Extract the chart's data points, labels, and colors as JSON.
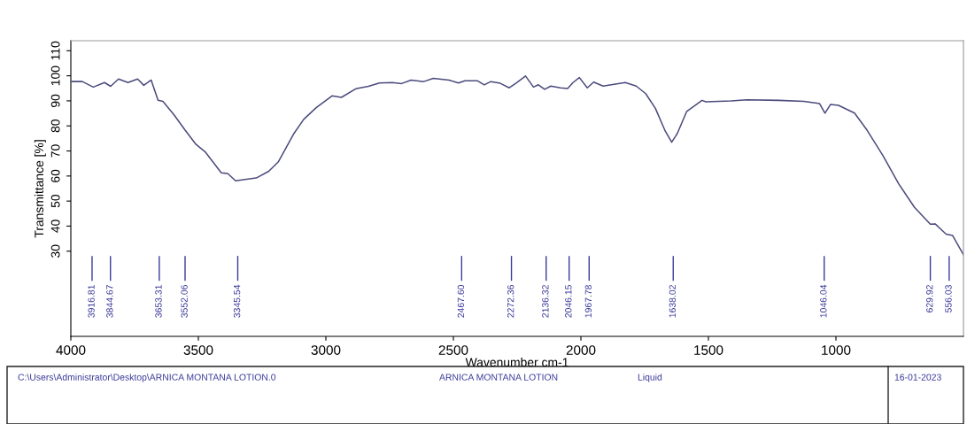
{
  "chart_data": {
    "type": "line",
    "xlabel": "Wavenumber cm-1",
    "ylabel": "Transmittance [%]",
    "xlim": [
      4000,
      500
    ],
    "xticks": [
      4000,
      3500,
      3000,
      2500,
      2000,
      1500,
      1000
    ],
    "ylim": [
      -4,
      114
    ],
    "yticks": [
      30,
      40,
      50,
      60,
      70,
      80,
      90,
      100,
      110
    ],
    "grid": false,
    "legend": false,
    "marker": "none",
    "line_style": "solid",
    "series": [
      {
        "color": "#4b4b7d",
        "x": [
          3995,
          3955,
          3912,
          3868,
          3844,
          3813,
          3776,
          3738,
          3714,
          3685,
          3658,
          3639,
          3596,
          3552,
          3509,
          3472,
          3410,
          3385,
          3354,
          3317,
          3273,
          3224,
          3186,
          3125,
          3087,
          3038,
          2976,
          2939,
          2883,
          2833,
          2790,
          2740,
          2703,
          2666,
          2616,
          2579,
          2517,
          2480,
          2455,
          2405,
          2379,
          2353,
          2316,
          2281,
          2254,
          2217,
          2186,
          2167,
          2142,
          2118,
          2080,
          2052,
          2031,
          2006,
          1975,
          1950,
          1913,
          1870,
          1826,
          1783,
          1746,
          1708,
          1671,
          1644,
          1622,
          1585,
          1525,
          1510,
          1411,
          1349,
          1225,
          1126,
          1064,
          1043,
          1021,
          990,
          927,
          878,
          816,
          754,
          692,
          630,
          611,
          568,
          543,
          500
        ],
        "values": [
          97.7,
          97.7,
          95.5,
          97.3,
          95.8,
          98.7,
          97.3,
          98.7,
          96.2,
          98.3,
          90.2,
          89.8,
          84.5,
          78.3,
          72.6,
          69.5,
          61.3,
          61.0,
          58.1,
          58.6,
          59.2,
          61.9,
          65.7,
          77.0,
          82.6,
          87.3,
          92.0,
          91.4,
          94.8,
          95.8,
          97.1,
          97.3,
          96.9,
          98.3,
          97.7,
          99.0,
          98.3,
          97.1,
          98.0,
          98.0,
          96.4,
          97.7,
          97.0,
          95.2,
          97.1,
          99.9,
          95.5,
          96.4,
          94.6,
          95.9,
          95.2,
          94.9,
          97.3,
          99.3,
          95.2,
          97.5,
          95.9,
          96.6,
          97.3,
          95.9,
          92.9,
          87.0,
          78.3,
          73.5,
          77.0,
          85.8,
          90.2,
          89.6,
          90.0,
          90.4,
          90.2,
          89.8,
          88.9,
          85.1,
          88.6,
          88.2,
          85.1,
          78.3,
          68.2,
          56.9,
          47.5,
          40.8,
          40.9,
          36.8,
          36.3,
          28.6
        ]
      }
    ],
    "ref_lines": [
      {
        "axis": "x",
        "value": 3916.81,
        "label": "3916.81",
        "color": "#3a3a9a"
      },
      {
        "axis": "x",
        "value": 3844.67,
        "label": "3844.67",
        "color": "#3a3a9a"
      },
      {
        "axis": "x",
        "value": 3653.31,
        "label": "3653.31",
        "color": "#3a3a9a"
      },
      {
        "axis": "x",
        "value": 3552.06,
        "label": "3552.06",
        "color": "#3a3a9a"
      },
      {
        "axis": "x",
        "value": 3345.54,
        "label": "3345.54",
        "color": "#3a3a9a"
      },
      {
        "axis": "x",
        "value": 2467.6,
        "label": "2467.60",
        "color": "#3a3a9a"
      },
      {
        "axis": "x",
        "value": 2272.36,
        "label": "2272.36",
        "color": "#3a3a9a"
      },
      {
        "axis": "x",
        "value": 2136.32,
        "label": "2136.32",
        "color": "#3a3a9a"
      },
      {
        "axis": "x",
        "value": 2046.15,
        "label": "2046.15",
        "color": "#3a3a9a"
      },
      {
        "axis": "x",
        "value": 1967.78,
        "label": "1967.78",
        "color": "#3a3a9a"
      },
      {
        "axis": "x",
        "value": 1638.02,
        "label": "1638.02",
        "color": "#3a3a9a"
      },
      {
        "axis": "x",
        "value": 1046.04,
        "label": "1046.04",
        "color": "#3a3a9a"
      },
      {
        "axis": "x",
        "value": 629.92,
        "label": "629.92",
        "color": "#3a3a9a"
      },
      {
        "axis": "x",
        "value": 556.03,
        "label": "556.03",
        "color": "#3a3a9a"
      }
    ],
    "annotations": [
      "C:\\Users\\Administrator\\Desktop\\ARNICA MONTANA LOTION.0",
      "ARNICA MONTANA LOTION",
      "Liquid",
      "16-01-2023"
    ]
  }
}
